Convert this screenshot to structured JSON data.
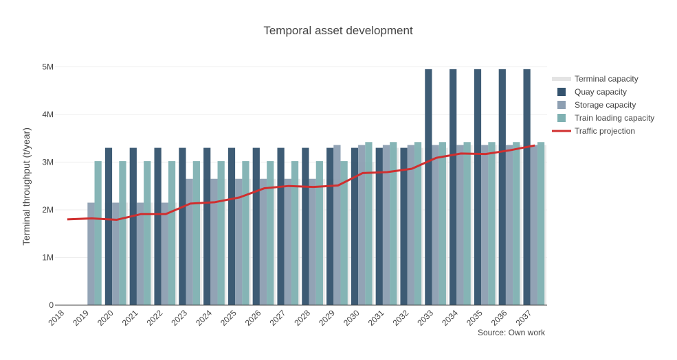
{
  "chart_data": {
    "type": "bar",
    "title": "Temporal asset development",
    "ylabel": "Terminal throughput (t/year)",
    "xlabel": "",
    "source": "Source: Own work",
    "ylim": [
      0,
      5250000
    ],
    "yticks": [
      0,
      1000000,
      2000000,
      3000000,
      4000000,
      5000000
    ],
    "ytick_labels": [
      "0",
      "1M",
      "2M",
      "3M",
      "4M",
      "5M"
    ],
    "grid": true,
    "legend_position": "top-right",
    "categories": [
      "2018",
      "2019",
      "2020",
      "2021",
      "2022",
      "2023",
      "2024",
      "2025",
      "2026",
      "2027",
      "2028",
      "2029",
      "2030",
      "2031",
      "2032",
      "2033",
      "2034",
      "2035",
      "2036",
      "2037"
    ],
    "series": [
      {
        "name": "Terminal capacity",
        "kind": "bar-wide",
        "color": "#e4e4e4",
        "values": [
          0,
          0,
          2150000,
          2150000,
          2150000,
          2150000,
          2650000,
          2650000,
          2650000,
          2650000,
          2650000,
          2650000,
          3000000,
          3300000,
          3300000,
          3300000,
          3360000,
          3360000,
          3360000,
          3360000
        ]
      },
      {
        "name": "Quay capacity",
        "kind": "bar",
        "color": "#34536e",
        "values": [
          0,
          0,
          3300000,
          3300000,
          3300000,
          3300000,
          3300000,
          3300000,
          3300000,
          3300000,
          3300000,
          3300000,
          3300000,
          3300000,
          3300000,
          4950000,
          4950000,
          4950000,
          4950000,
          4950000
        ]
      },
      {
        "name": "Storage capacity",
        "kind": "bar",
        "color": "#8d9fb2",
        "values": [
          0,
          2150000,
          2150000,
          2150000,
          2150000,
          2650000,
          2650000,
          2650000,
          2650000,
          2650000,
          2650000,
          3360000,
          3360000,
          3360000,
          3360000,
          3360000,
          3360000,
          3360000,
          3360000,
          3360000
        ]
      },
      {
        "name": "Train loading capacity",
        "kind": "bar",
        "color": "#7fb1b2",
        "values": [
          0,
          3020000,
          3020000,
          3020000,
          3020000,
          3020000,
          3020000,
          3020000,
          3020000,
          3020000,
          3020000,
          3020000,
          3420000,
          3420000,
          3420000,
          3420000,
          3420000,
          3420000,
          3420000,
          3420000
        ]
      },
      {
        "name": "Traffic projection",
        "kind": "line",
        "color": "#d02f2f",
        "values": [
          1800000,
          1820000,
          1790000,
          1910000,
          1910000,
          2130000,
          2160000,
          2260000,
          2450000,
          2500000,
          2480000,
          2510000,
          2770000,
          2790000,
          2860000,
          3090000,
          3180000,
          3170000,
          3250000,
          3350000
        ]
      }
    ]
  }
}
